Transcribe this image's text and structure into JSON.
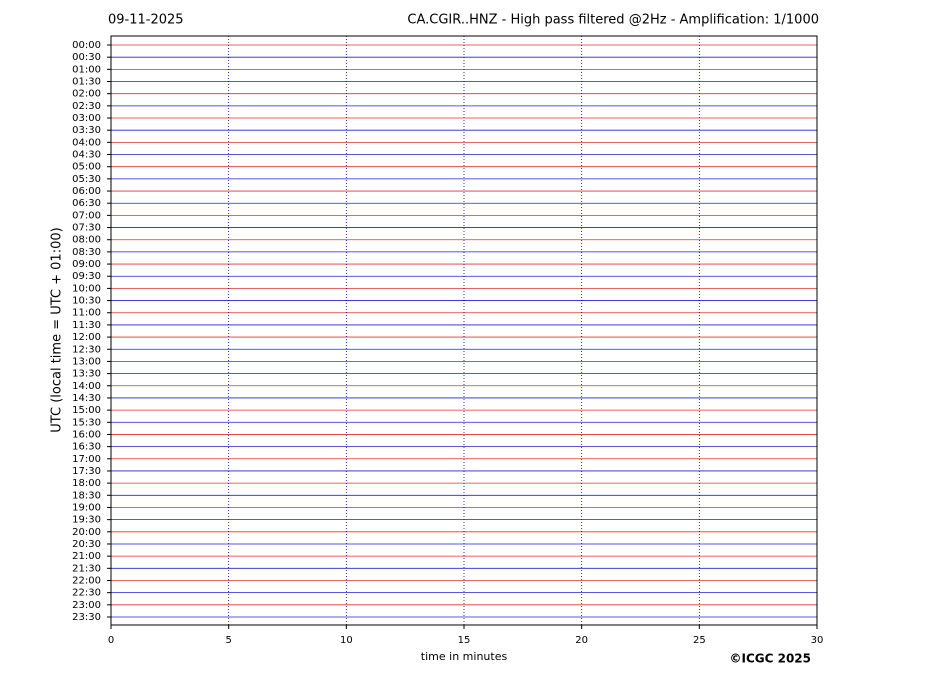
{
  "chart_data": {
    "type": "helicorder",
    "date": "09-11-2025",
    "title": "CA.CGIR..HNZ - High pass filtered @2Hz - Amplification: 1/1000",
    "ylabel": "UTC (local time = UTC + 01:00)",
    "xlabel": "time in minutes",
    "credit": "©ICGC 2025",
    "categories": [
      "00:00",
      "00:30",
      "01:00",
      "01:30",
      "02:00",
      "02:30",
      "03:00",
      "03:30",
      "04:00",
      "04:30",
      "05:00",
      "05:30",
      "06:00",
      "06:30",
      "07:00",
      "07:30",
      "08:00",
      "08:30",
      "09:00",
      "09:30",
      "10:00",
      "10:30",
      "11:00",
      "11:30",
      "12:00",
      "12:30",
      "13:00",
      "13:30",
      "14:00",
      "14:30",
      "15:00",
      "15:30",
      "16:00",
      "16:30",
      "17:00",
      "17:30",
      "18:00",
      "18:30",
      "19:00",
      "19:30",
      "20:00",
      "20:30",
      "21:00",
      "21:30",
      "22:00",
      "22:30",
      "23:00",
      "23:30"
    ],
    "row_colors": [
      "#e03030",
      "#2020d0"
    ],
    "xlim": [
      0,
      30
    ],
    "xticks": [
      0,
      5,
      10,
      15,
      20,
      25,
      30
    ],
    "grid": true
  }
}
